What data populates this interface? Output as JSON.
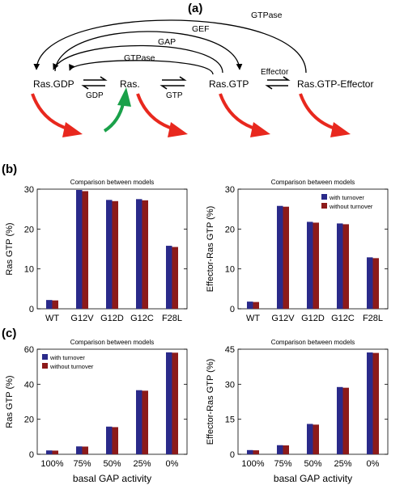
{
  "panel_labels": {
    "a": "(a)",
    "b": "(b)",
    "c": "(c)"
  },
  "scheme": {
    "nodes": {
      "ras_gdp": "Ras.GDP",
      "ras": "Ras.",
      "ras_gtp": "Ras.GTP",
      "ras_gtp_effector": "Ras.GTP-Effector"
    },
    "arcs": {
      "gtpase_outer": "GTPase",
      "gef": "GEF",
      "gap": "GAP",
      "gtpase_inner": "GTPase"
    },
    "exchanges": {
      "gdp": "GDP",
      "gtp": "GTP",
      "effector": "Effector"
    },
    "colors": {
      "degradation": "#e8281e",
      "synthesis": "#1aa14a"
    }
  },
  "legend": {
    "with_turnover": "with turnover",
    "without_turnover": "without turnover",
    "color_with": "#2a2a8a",
    "color_without": "#8c1a1a"
  },
  "chart_data": [
    {
      "type": "bar",
      "title": "Comparison between models",
      "ylabel": "Ras GTP (%)",
      "xlabel": "",
      "categories": [
        "WT",
        "G12V",
        "G12D",
        "G12C",
        "F28L"
      ],
      "ylim": [
        0,
        30
      ],
      "yticks": [
        0,
        10,
        20,
        30
      ],
      "legend": "none",
      "series": [
        {
          "values": [
            2.2,
            29.8,
            27.3,
            27.5,
            15.8
          ]
        },
        {
          "values": [
            2.1,
            29.5,
            27.0,
            27.2,
            15.5
          ]
        }
      ]
    },
    {
      "type": "bar",
      "title": "Comparison between models",
      "ylabel": "Effector-Ras GTP (%)",
      "xlabel": "",
      "categories": [
        "WT",
        "G12V",
        "G12D",
        "G12C",
        "F28L"
      ],
      "ylim": [
        0,
        30
      ],
      "yticks": [
        0,
        10,
        20,
        30
      ],
      "legend": "top-right",
      "series": [
        {
          "name": "with turnover",
          "values": [
            1.8,
            25.8,
            21.8,
            21.4,
            12.9
          ]
        },
        {
          "name": "without turnover",
          "values": [
            1.7,
            25.6,
            21.6,
            21.2,
            12.7
          ]
        }
      ]
    },
    {
      "type": "bar",
      "title": "Comparison between models",
      "ylabel": "Ras GTP (%)",
      "xlabel": "basal GAP activity",
      "categories": [
        "100%",
        "75%",
        "50%",
        "25%",
        "0%"
      ],
      "ylim": [
        0,
        60
      ],
      "yticks": [
        0,
        20,
        40,
        60
      ],
      "legend": "top-left",
      "series": [
        {
          "name": "with turnover",
          "values": [
            2.2,
            4.5,
            15.8,
            36.6,
            58.2
          ]
        },
        {
          "name": "without turnover",
          "values": [
            2.1,
            4.4,
            15.5,
            36.3,
            58.0
          ]
        }
      ]
    },
    {
      "type": "bar",
      "title": "Comparison between models",
      "ylabel": "Effector-Ras GTP (%)",
      "xlabel": "basal GAP activity",
      "categories": [
        "100%",
        "75%",
        "50%",
        "25%",
        "0%"
      ],
      "ylim": [
        0,
        45
      ],
      "yticks": [
        0,
        15,
        30,
        45
      ],
      "legend": "none",
      "series": [
        {
          "values": [
            1.8,
            3.9,
            13.0,
            28.8,
            43.6
          ]
        },
        {
          "values": [
            1.7,
            3.8,
            12.7,
            28.5,
            43.4
          ]
        }
      ]
    }
  ]
}
